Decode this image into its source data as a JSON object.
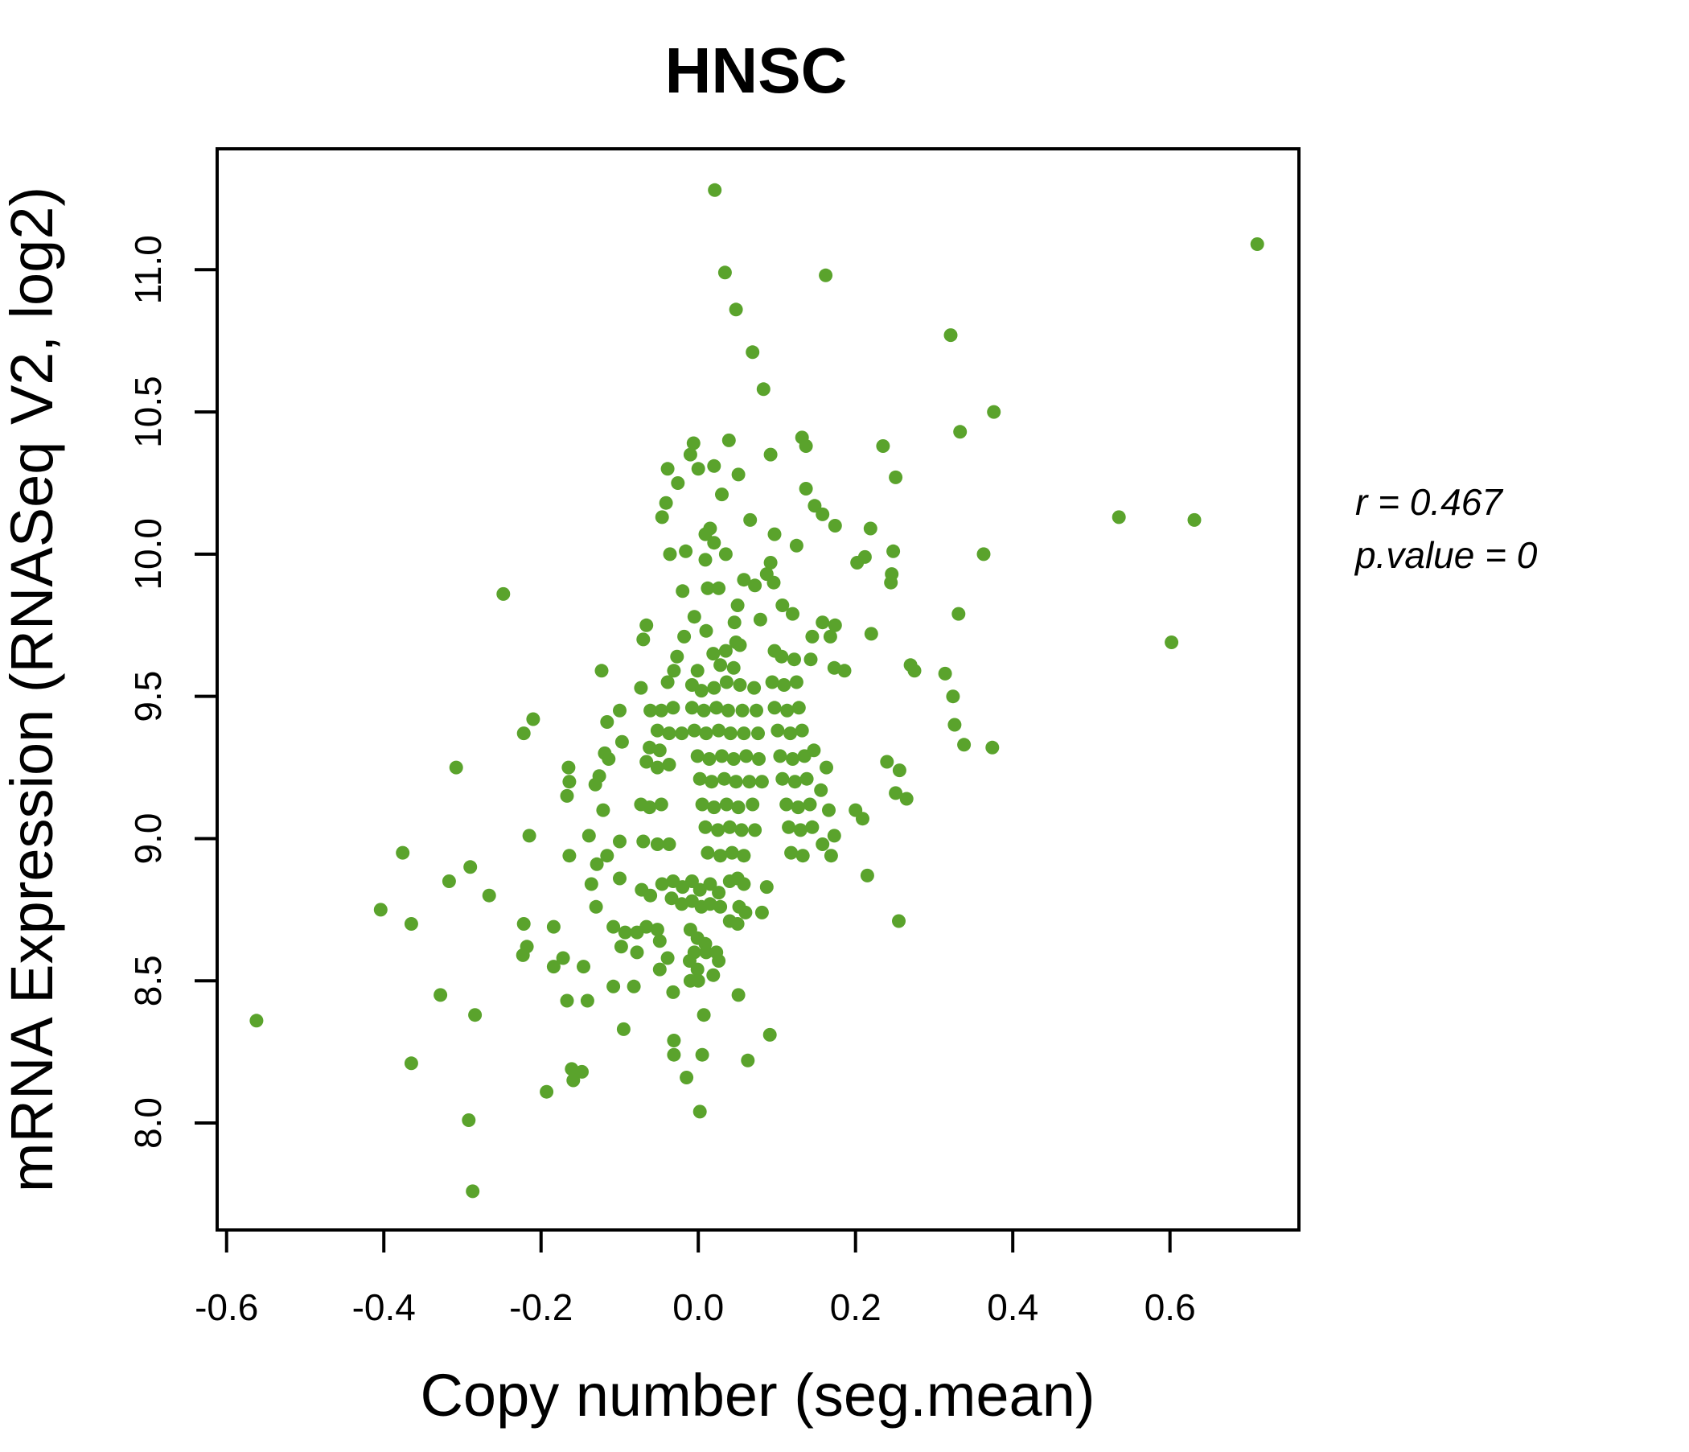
{
  "chart_data": {
    "type": "scatter",
    "title": "HNSC",
    "xlabel": "Copy number (seg.mean)",
    "ylabel": "mRNA Expression (RNASeq V2, log2)",
    "annotation": {
      "line1": "r = 0.467",
      "line2": "p.value = 0"
    },
    "title_color": "#64a820",
    "point_color": "#5aa32c",
    "axis_color": "#000000",
    "xlim": [
      -0.612,
      0.764
    ],
    "ylim": [
      7.624,
      11.425
    ],
    "x_ticks": {
      "values": [
        -0.6,
        -0.4,
        -0.2,
        0.0,
        0.2,
        0.4,
        0.6
      ],
      "labels": [
        "-0.6",
        "-0.4",
        "-0.2",
        "0.0",
        "0.2",
        "0.4",
        "0.6"
      ]
    },
    "y_ticks": {
      "values": [
        8.0,
        8.5,
        9.0,
        9.5,
        10.0,
        10.5,
        11.0
      ],
      "labels": [
        "8.0",
        "8.5",
        "9.0",
        "9.5",
        "10.0",
        "10.5",
        "11.0"
      ]
    },
    "grid": false,
    "points": [
      [
        0.021,
        11.28
      ],
      [
        0.034,
        10.99
      ],
      [
        0.162,
        10.98
      ],
      [
        0.048,
        10.86
      ],
      [
        0.069,
        10.71
      ],
      [
        0.083,
        10.58
      ],
      [
        -0.006,
        10.39
      ],
      [
        -0.01,
        10.35
      ],
      [
        0.039,
        10.4
      ],
      [
        0.132,
        10.41
      ],
      [
        0.137,
        10.38
      ],
      [
        0.235,
        10.38
      ],
      [
        -0.039,
        10.3
      ],
      [
        0.0,
        10.3
      ],
      [
        0.02,
        10.31
      ],
      [
        0.051,
        10.28
      ],
      [
        0.092,
        10.35
      ],
      [
        -0.026,
        10.25
      ],
      [
        0.03,
        10.21
      ],
      [
        0.137,
        10.23
      ],
      [
        0.251,
        10.27
      ],
      [
        -0.041,
        10.18
      ],
      [
        0.148,
        10.17
      ],
      [
        0.711,
        11.09
      ],
      [
        0.321,
        10.77
      ],
      [
        0.376,
        10.5
      ],
      [
        0.333,
        10.43
      ],
      [
        0.535,
        10.13
      ],
      [
        0.631,
        10.12
      ],
      [
        0.363,
        10.0
      ],
      [
        0.331,
        9.79
      ],
      [
        0.602,
        9.69
      ],
      [
        0.314,
        9.58
      ],
      [
        0.324,
        9.5
      ],
      [
        0.326,
        9.4
      ],
      [
        0.338,
        9.33
      ],
      [
        0.374,
        9.32
      ],
      [
        -0.248,
        9.86
      ],
      [
        -0.21,
        9.42
      ],
      [
        -0.222,
        9.37
      ],
      [
        -0.308,
        9.25
      ],
      [
        -0.165,
        9.25
      ],
      [
        -0.164,
        9.2
      ],
      [
        -0.167,
        9.15
      ],
      [
        -0.215,
        9.01
      ],
      [
        -0.376,
        8.95
      ],
      [
        -0.29,
        8.9
      ],
      [
        -0.164,
        8.94
      ],
      [
        -0.317,
        8.85
      ],
      [
        -0.266,
        8.8
      ],
      [
        -0.404,
        8.75
      ],
      [
        -0.365,
        8.7
      ],
      [
        -0.222,
        8.7
      ],
      [
        -0.184,
        8.69
      ],
      [
        -0.223,
        8.59
      ],
      [
        -0.218,
        8.62
      ],
      [
        -0.184,
        8.55
      ],
      [
        -0.172,
        8.58
      ],
      [
        -0.328,
        8.45
      ],
      [
        -0.284,
        8.38
      ],
      [
        -0.167,
        8.43
      ],
      [
        -0.562,
        8.36
      ],
      [
        -0.365,
        8.21
      ],
      [
        -0.161,
        8.19
      ],
      [
        -0.159,
        8.15
      ],
      [
        -0.193,
        8.11
      ],
      [
        -0.292,
        8.01
      ],
      [
        -0.287,
        7.76
      ],
      [
        -0.046,
        10.13
      ],
      [
        0.066,
        10.12
      ],
      [
        0.158,
        10.14
      ],
      [
        0.174,
        10.1
      ],
      [
        0.219,
        10.09
      ],
      [
        0.015,
        10.09
      ],
      [
        0.097,
        10.07
      ],
      [
        0.125,
        10.03
      ],
      [
        -0.036,
        10.0
      ],
      [
        -0.016,
        10.01
      ],
      [
        0.009,
        10.07
      ],
      [
        0.02,
        10.04
      ],
      [
        0.009,
        9.98
      ],
      [
        0.035,
        10.0
      ],
      [
        0.092,
        9.97
      ],
      [
        0.202,
        9.97
      ],
      [
        0.212,
        9.99
      ],
      [
        0.248,
        10.01
      ],
      [
        0.246,
        9.93
      ],
      [
        0.058,
        9.91
      ],
      [
        0.072,
        9.89
      ],
      [
        0.087,
        9.93
      ],
      [
        0.096,
        9.9
      ],
      [
        -0.02,
        9.87
      ],
      [
        0.012,
        9.88
      ],
      [
        0.026,
        9.88
      ],
      [
        0.05,
        9.82
      ],
      [
        0.245,
        9.9
      ],
      [
        0.107,
        9.82
      ],
      [
        0.12,
        9.79
      ],
      [
        0.046,
        9.76
      ],
      [
        0.079,
        9.77
      ],
      [
        -0.005,
        9.78
      ],
      [
        -0.066,
        9.75
      ],
      [
        -0.07,
        9.7
      ],
      [
        0.01,
        9.73
      ],
      [
        0.158,
        9.76
      ],
      [
        0.174,
        9.75
      ],
      [
        0.145,
        9.71
      ],
      [
        0.168,
        9.71
      ],
      [
        0.22,
        9.72
      ],
      [
        -0.018,
        9.71
      ],
      [
        -0.027,
        9.64
      ],
      [
        0.019,
        9.65
      ],
      [
        0.035,
        9.66
      ],
      [
        0.048,
        9.69
      ],
      [
        0.053,
        9.68
      ],
      [
        0.097,
        9.66
      ],
      [
        0.106,
        9.64
      ],
      [
        0.122,
        9.63
      ],
      [
        0.143,
        9.63
      ],
      [
        0.173,
        9.6
      ],
      [
        0.186,
        9.59
      ],
      [
        0.275,
        9.59
      ],
      [
        -0.123,
        9.59
      ],
      [
        -0.031,
        9.59
      ],
      [
        -0.001,
        9.59
      ],
      [
        0.028,
        9.61
      ],
      [
        0.045,
        9.6
      ],
      [
        -0.039,
        9.55
      ],
      [
        -0.073,
        9.53
      ],
      [
        -0.1,
        9.45
      ],
      [
        -0.116,
        9.41
      ],
      [
        -0.097,
        9.34
      ],
      [
        -0.119,
        9.3
      ],
      [
        -0.114,
        9.28
      ],
      [
        -0.126,
        9.22
      ],
      [
        -0.131,
        9.19
      ],
      [
        -0.121,
        9.1
      ],
      [
        -0.1,
        8.99
      ],
      [
        -0.139,
        9.01
      ],
      [
        -0.116,
        8.94
      ],
      [
        -0.129,
        8.91
      ],
      [
        -0.061,
        9.45
      ],
      [
        -0.047,
        9.45
      ],
      [
        -0.032,
        9.46
      ],
      [
        -0.052,
        9.38
      ],
      [
        -0.037,
        9.37
      ],
      [
        -0.021,
        9.37
      ],
      [
        -0.062,
        9.32
      ],
      [
        -0.049,
        9.31
      ],
      [
        -0.066,
        9.27
      ],
      [
        -0.052,
        9.25
      ],
      [
        -0.037,
        9.26
      ],
      [
        -0.073,
        9.12
      ],
      [
        -0.062,
        9.11
      ],
      [
        -0.047,
        9.12
      ],
      [
        -0.07,
        8.99
      ],
      [
        -0.052,
        8.98
      ],
      [
        -0.037,
        8.98
      ],
      [
        -0.008,
        9.54
      ],
      [
        0.004,
        9.52
      ],
      [
        0.02,
        9.53
      ],
      [
        0.036,
        9.55
      ],
      [
        0.053,
        9.54
      ],
      [
        0.071,
        9.53
      ],
      [
        -0.008,
        9.46
      ],
      [
        0.007,
        9.45
      ],
      [
        0.023,
        9.46
      ],
      [
        0.038,
        9.45
      ],
      [
        0.056,
        9.45
      ],
      [
        0.074,
        9.45
      ],
      [
        -0.005,
        9.38
      ],
      [
        0.01,
        9.37
      ],
      [
        0.026,
        9.38
      ],
      [
        0.041,
        9.37
      ],
      [
        0.058,
        9.37
      ],
      [
        0.076,
        9.37
      ],
      [
        -0.001,
        9.29
      ],
      [
        0.014,
        9.28
      ],
      [
        0.03,
        9.29
      ],
      [
        0.045,
        9.28
      ],
      [
        0.061,
        9.29
      ],
      [
        0.077,
        9.28
      ],
      [
        0.002,
        9.21
      ],
      [
        0.017,
        9.2
      ],
      [
        0.033,
        9.21
      ],
      [
        0.048,
        9.2
      ],
      [
        0.065,
        9.2
      ],
      [
        0.081,
        9.2
      ],
      [
        0.005,
        9.12
      ],
      [
        0.02,
        9.11
      ],
      [
        0.036,
        9.12
      ],
      [
        0.051,
        9.11
      ],
      [
        0.069,
        9.12
      ],
      [
        0.009,
        9.04
      ],
      [
        0.025,
        9.03
      ],
      [
        0.04,
        9.04
      ],
      [
        0.055,
        9.03
      ],
      [
        0.072,
        9.03
      ],
      [
        0.012,
        8.95
      ],
      [
        0.028,
        8.94
      ],
      [
        0.043,
        8.95
      ],
      [
        0.058,
        8.94
      ],
      [
        0.094,
        9.55
      ],
      [
        0.109,
        9.54
      ],
      [
        0.125,
        9.55
      ],
      [
        0.097,
        9.46
      ],
      [
        0.113,
        9.45
      ],
      [
        0.128,
        9.46
      ],
      [
        0.101,
        9.38
      ],
      [
        0.117,
        9.37
      ],
      [
        0.132,
        9.38
      ],
      [
        0.104,
        9.29
      ],
      [
        0.12,
        9.28
      ],
      [
        0.135,
        9.29
      ],
      [
        0.107,
        9.21
      ],
      [
        0.123,
        9.2
      ],
      [
        0.138,
        9.21
      ],
      [
        0.112,
        9.12
      ],
      [
        0.127,
        9.11
      ],
      [
        0.142,
        9.12
      ],
      [
        0.115,
        9.04
      ],
      [
        0.13,
        9.03
      ],
      [
        0.145,
        9.04
      ],
      [
        0.118,
        8.95
      ],
      [
        0.133,
        8.94
      ],
      [
        0.147,
        9.31
      ],
      [
        0.163,
        9.25
      ],
      [
        0.156,
        9.17
      ],
      [
        0.166,
        9.1
      ],
      [
        0.173,
        9.01
      ],
      [
        0.158,
        8.98
      ],
      [
        0.169,
        8.94
      ],
      [
        0.2,
        9.1
      ],
      [
        0.209,
        9.07
      ],
      [
        0.24,
        9.27
      ],
      [
        0.256,
        9.24
      ],
      [
        0.251,
        9.16
      ],
      [
        0.265,
        9.14
      ],
      [
        0.27,
        9.61
      ],
      [
        -0.136,
        8.84
      ],
      [
        -0.1,
        8.86
      ],
      [
        -0.13,
        8.76
      ],
      [
        -0.072,
        8.82
      ],
      [
        -0.061,
        8.8
      ],
      [
        -0.046,
        8.84
      ],
      [
        -0.032,
        8.85
      ],
      [
        -0.02,
        8.83
      ],
      [
        -0.008,
        8.85
      ],
      [
        0.002,
        8.82
      ],
      [
        0.015,
        8.84
      ],
      [
        0.026,
        8.81
      ],
      [
        -0.034,
        8.79
      ],
      [
        -0.021,
        8.77
      ],
      [
        -0.008,
        8.78
      ],
      [
        0.004,
        8.76
      ],
      [
        0.015,
        8.77
      ],
      [
        0.028,
        8.76
      ],
      [
        0.04,
        8.85
      ],
      [
        0.05,
        8.86
      ],
      [
        0.058,
        8.84
      ],
      [
        0.087,
        8.83
      ],
      [
        0.052,
        8.76
      ],
      [
        0.06,
        8.74
      ],
      [
        0.081,
        8.74
      ],
      [
        0.04,
        8.71
      ],
      [
        0.05,
        8.7
      ],
      [
        -0.108,
        8.69
      ],
      [
        -0.093,
        8.67
      ],
      [
        -0.078,
        8.67
      ],
      [
        -0.066,
        8.69
      ],
      [
        -0.052,
        8.68
      ],
      [
        -0.098,
        8.62
      ],
      [
        -0.078,
        8.6
      ],
      [
        -0.049,
        8.64
      ],
      [
        -0.039,
        8.58
      ],
      [
        -0.049,
        8.54
      ],
      [
        -0.01,
        8.68
      ],
      [
        -0.001,
        8.65
      ],
      [
        0.009,
        8.63
      ],
      [
        -0.005,
        8.6
      ],
      [
        -0.011,
        8.57
      ],
      [
        -0.001,
        8.54
      ],
      [
        0.01,
        8.6
      ],
      [
        0.023,
        8.6
      ],
      [
        0.026,
        8.57
      ],
      [
        0.019,
        8.52
      ],
      [
        0.0,
        8.5
      ],
      [
        -0.146,
        8.55
      ],
      [
        -0.141,
        8.43
      ],
      [
        -0.108,
        8.48
      ],
      [
        -0.082,
        8.48
      ],
      [
        -0.032,
        8.46
      ],
      [
        -0.01,
        8.5
      ],
      [
        0.051,
        8.45
      ],
      [
        0.007,
        8.38
      ],
      [
        -0.095,
        8.33
      ],
      [
        -0.031,
        8.29
      ],
      [
        -0.031,
        8.24
      ],
      [
        0.005,
        8.24
      ],
      [
        0.063,
        8.22
      ],
      [
        0.091,
        8.31
      ],
      [
        -0.015,
        8.16
      ],
      [
        -0.148,
        8.18
      ],
      [
        0.002,
        8.04
      ],
      [
        0.255,
        8.71
      ],
      [
        0.215,
        8.87
      ]
    ]
  }
}
